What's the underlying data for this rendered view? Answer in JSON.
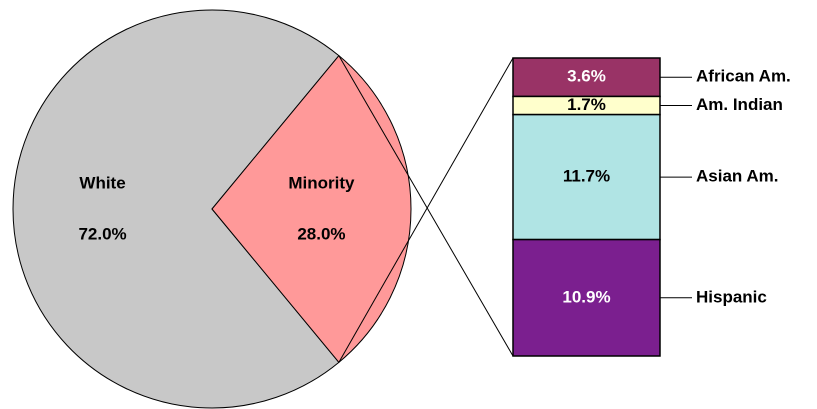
{
  "chart_data": {
    "type": "pie",
    "categories": [
      "White",
      "Minority"
    ],
    "values": [
      72.0,
      28.0
    ],
    "value_labels": [
      "72.0%",
      "28.0%"
    ],
    "colors": [
      "#c8c8c8",
      "#ff9999"
    ],
    "breakdown": {
      "type": "bar",
      "categories": [
        "African Am.",
        "Am. Indian",
        "Asian Am.",
        "Hispanic"
      ],
      "values": [
        3.6,
        1.7,
        11.7,
        10.9
      ],
      "value_labels": [
        "3.6%",
        "1.7%",
        "11.7%",
        "10.9%"
      ],
      "colors": [
        "#993366",
        "#ffffcc",
        "#b0e4e4",
        "#7b1f8f"
      ]
    }
  }
}
